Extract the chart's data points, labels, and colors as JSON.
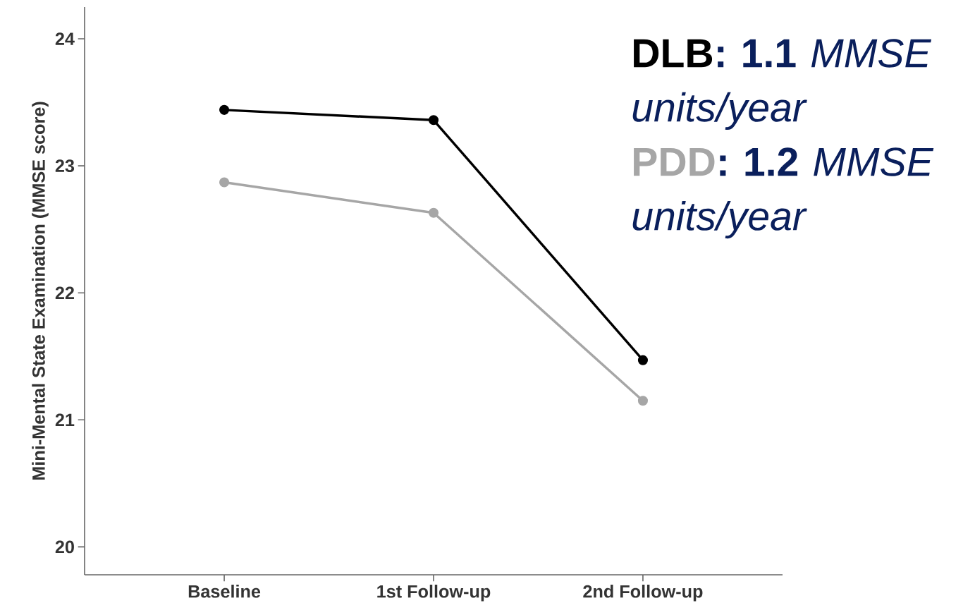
{
  "chart_data": {
    "type": "line",
    "ylabel": "Mini-Mental State Examination (MMSE score)",
    "categories": [
      "Baseline",
      "1st Follow-up",
      "2nd Follow-up"
    ],
    "series": [
      {
        "name": "DLB",
        "color": "#000000",
        "values": [
          23.44,
          23.36,
          21.47
        ]
      },
      {
        "name": "PDD",
        "color": "#a6a6a6",
        "values": [
          22.87,
          22.63,
          21.15
        ]
      }
    ],
    "ylim": [
      19.78,
      24.25
    ],
    "yticks": [
      20,
      21,
      22,
      23,
      24
    ],
    "annotations": [
      "**: 1.1** *MMSE units/year*",
      "**: 1.2** *MMSE units/year*"
    ],
    "marker": "circle",
    "grid": false,
    "legend": "top right"
  }
}
